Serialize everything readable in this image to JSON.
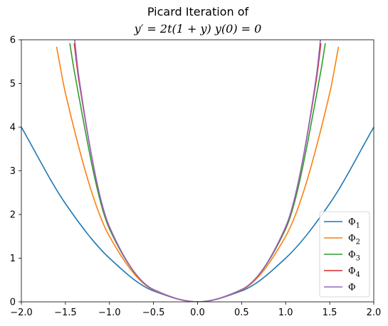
{
  "chart_data": {
    "type": "line",
    "title": "Picard Iteration of",
    "subtitle": "y′ = 2t(1 + y)    y(0) = 0",
    "xlabel": "",
    "ylabel": "",
    "xlim": [
      -2.0,
      2.0
    ],
    "ylim": [
      0,
      6
    ],
    "x_ticks": [
      "−2.0",
      "−1.5",
      "−1.0",
      "−0.5",
      "0.0",
      "0.5",
      "1.0",
      "1.5",
      "2.0"
    ],
    "y_ticks": [
      "0",
      "1",
      "2",
      "3",
      "4",
      "5",
      "6"
    ],
    "grid": false,
    "legend_position": "lower-right",
    "series": [
      {
        "name": "Φ1",
        "color": "#1f77b4",
        "x": [
          -2.0,
          -1.5,
          -1.0,
          -0.5,
          0.0,
          0.5,
          1.0,
          1.5,
          2.0
        ],
        "y": [
          4.0,
          2.25,
          1.0,
          0.25,
          0.0,
          0.25,
          1.0,
          2.25,
          4.0
        ]
      },
      {
        "name": "Φ2",
        "color": "#ff7f0e",
        "x": [
          -1.6,
          -1.5,
          -1.0,
          -0.5,
          0.0,
          0.5,
          1.0,
          1.5,
          1.6
        ],
        "y": [
          5.84,
          4.78,
          1.5,
          0.27,
          0.0,
          0.27,
          1.5,
          4.78,
          5.84
        ]
      },
      {
        "name": "Φ3",
        "color": "#2ca02c",
        "x": [
          -1.45,
          -1.4,
          -1.0,
          -0.5,
          0.0,
          0.5,
          1.0,
          1.4,
          1.45
        ],
        "y": [
          5.92,
          5.29,
          1.67,
          0.28,
          0.0,
          0.28,
          1.67,
          5.29,
          5.92
        ]
      },
      {
        "name": "Φ4",
        "color": "#d62728",
        "x": [
          -1.4,
          -1.35,
          -1.0,
          -0.5,
          0.0,
          0.5,
          1.0,
          1.35,
          1.4
        ],
        "y": [
          5.92,
          5.11,
          1.71,
          0.28,
          0.0,
          0.28,
          1.71,
          5.11,
          5.92
        ]
      },
      {
        "name": "Φ",
        "color": "#9467bd",
        "x": [
          -1.4,
          -1.35,
          -1.0,
          -0.5,
          0.0,
          0.5,
          1.0,
          1.35,
          1.4
        ],
        "y": [
          6.1,
          5.19,
          1.72,
          0.28,
          0.0,
          0.28,
          1.72,
          5.19,
          6.1
        ]
      }
    ]
  }
}
